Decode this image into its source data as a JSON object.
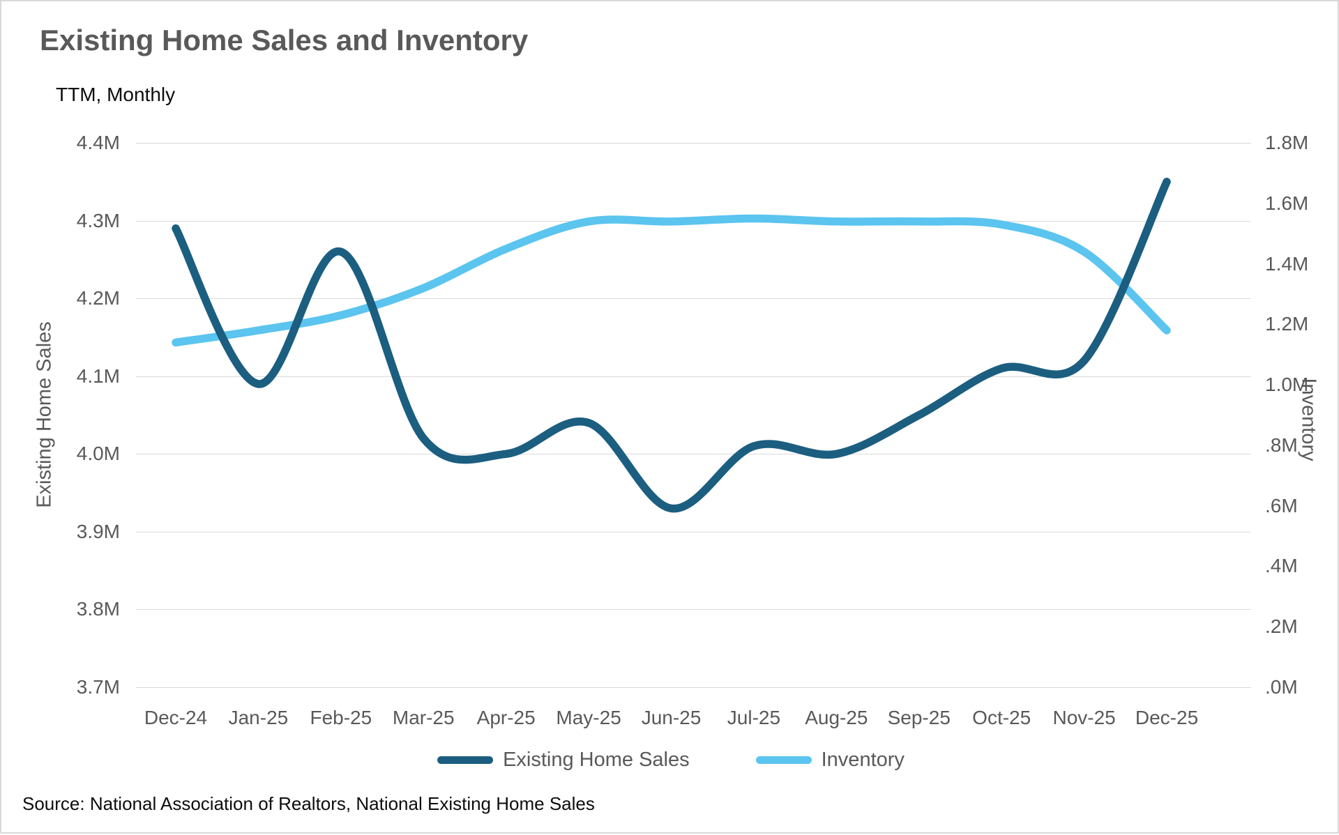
{
  "header": {
    "title": "Existing Home Sales and Inventory",
    "subtitle": "TTM, Monthly"
  },
  "source_note": "Source: National Association of Realtors, National Existing Home Sales",
  "colors": {
    "sales_line": "#1b5e80",
    "inventory_line": "#5bc4ef",
    "gridline": "#d9d9d9",
    "axis_text": "#595959"
  },
  "legend": {
    "items": [
      {
        "label": "Existing Home Sales",
        "color": "#1b5e80"
      },
      {
        "label": "Inventory",
        "color": "#5bc4ef"
      }
    ]
  },
  "chart_data": {
    "type": "line",
    "title": "Existing Home Sales and Inventory",
    "subtitle": "TTM, Monthly",
    "categories": [
      "Dec-24",
      "Jan-25",
      "Feb-25",
      "Mar-25",
      "Apr-25",
      "May-25",
      "Jun-25",
      "Jul-25",
      "Aug-25",
      "Sep-25",
      "Oct-25",
      "Nov-25",
      "Dec-25"
    ],
    "series": [
      {
        "name": "Existing Home Sales",
        "axis": "left",
        "color": "#1b5e80",
        "values": [
          4.29,
          4.09,
          4.26,
          4.02,
          4.0,
          4.04,
          3.93,
          4.01,
          4.0,
          4.05,
          4.11,
          4.12,
          4.35
        ]
      },
      {
        "name": "Inventory",
        "axis": "right",
        "color": "#5bc4ef",
        "values": [
          1.14,
          1.18,
          1.23,
          1.32,
          1.45,
          1.54,
          1.54,
          1.55,
          1.54,
          1.54,
          1.53,
          1.44,
          1.18
        ]
      }
    ],
    "left_axis": {
      "label": "Existing Home Sales",
      "min": 3.7,
      "max": 4.4,
      "ticks": [
        {
          "label": "4.4M",
          "value": 4.4
        },
        {
          "label": "4.3M",
          "value": 4.3
        },
        {
          "label": "4.2M",
          "value": 4.2
        },
        {
          "label": "4.1M",
          "value": 4.1
        },
        {
          "label": "4.0M",
          "value": 4.0
        },
        {
          "label": "3.9M",
          "value": 3.9
        },
        {
          "label": "3.8M",
          "value": 3.8
        },
        {
          "label": "3.7M",
          "value": 3.7
        }
      ]
    },
    "right_axis": {
      "label": "Inventory",
      "min": 0.0,
      "max": 1.8,
      "ticks": [
        {
          "label": "1.8M",
          "value": 1.8
        },
        {
          "label": "1.6M",
          "value": 1.6
        },
        {
          "label": "1.4M",
          "value": 1.4
        },
        {
          "label": "1.2M",
          "value": 1.2
        },
        {
          "label": "1.0M",
          "value": 1.0
        },
        {
          "label": ".8M",
          "value": 0.8
        },
        {
          "label": ".6M",
          "value": 0.6
        },
        {
          "label": ".4M",
          "value": 0.4
        },
        {
          "label": ".2M",
          "value": 0.2
        },
        {
          "label": ".0M",
          "value": 0.0
        }
      ]
    },
    "grid": "horizontal",
    "legend_position": "bottom",
    "smooth_lines": true
  }
}
